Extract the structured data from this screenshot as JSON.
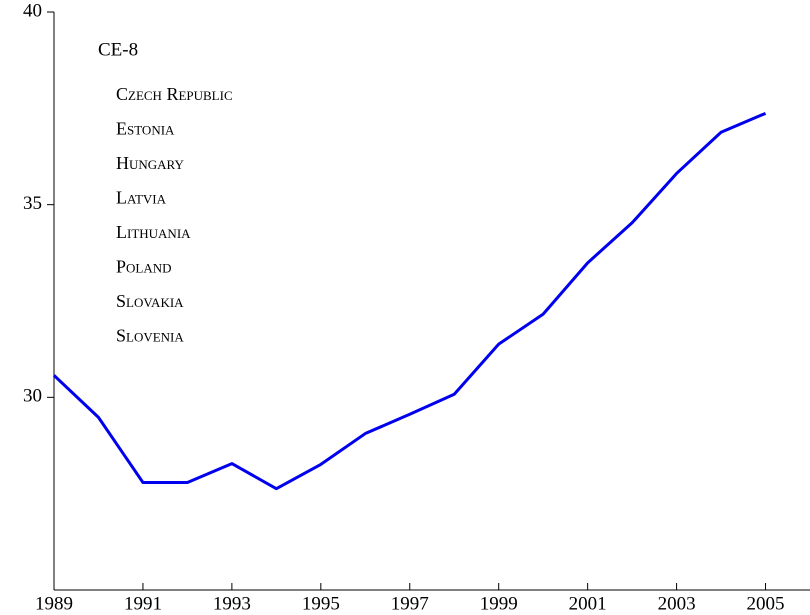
{
  "chart_data": {
    "type": "line",
    "legend_title": "CE-8",
    "countries": [
      "Czech Republic",
      "Estonia",
      "Hungary",
      "Latvia",
      "Lithuania",
      "Poland",
      "Slovakia",
      "Slovenia"
    ],
    "x": [
      1989,
      1990,
      1991,
      1992,
      1993,
      1994,
      1995,
      1996,
      1997,
      1998,
      1999,
      2000,
      2001,
      2002,
      2003,
      2004,
      2005
    ],
    "series": [
      {
        "name": "CE-8",
        "color": "#0000ee",
        "values": [
          30.57,
          29.48,
          27.79,
          27.79,
          28.28,
          27.63,
          28.26,
          29.06,
          29.56,
          30.08,
          31.38,
          32.16,
          33.49,
          34.53,
          35.81,
          36.88,
          37.37
        ]
      }
    ],
    "xlim": [
      1989,
      2006
    ],
    "xticks": [
      1989,
      1991,
      1993,
      1995,
      1997,
      1999,
      2001,
      2003,
      2005
    ],
    "ylim": [
      25,
      40
    ],
    "yticks": [
      30,
      35,
      40
    ]
  }
}
